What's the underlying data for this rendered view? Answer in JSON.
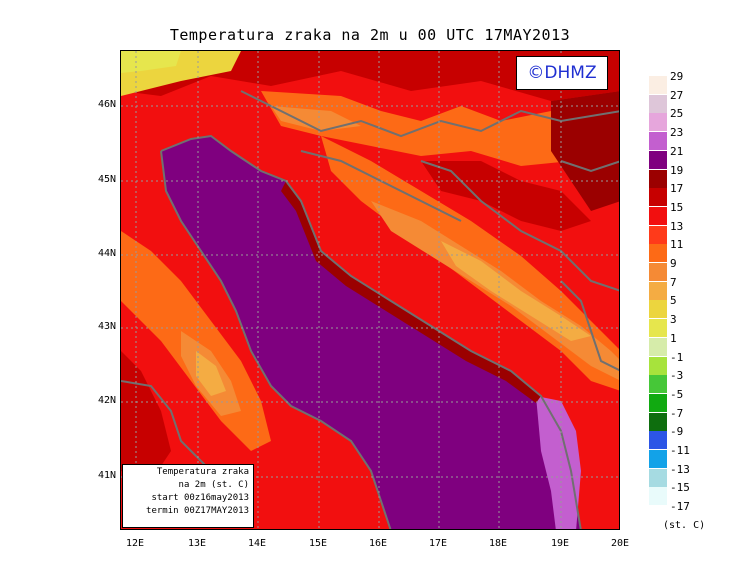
{
  "title": "Temperatura zraka na 2m u 00 UTC 17MAY2013",
  "badge": "©DHMZ",
  "info_box": {
    "line1": "Temperatura zraka",
    "line2": "na 2m (st. C)",
    "line3": "start 00z16may2013",
    "line4": "termin 00Z17MAY2013"
  },
  "lat_ticks": [
    "46N",
    "45N",
    "44N",
    "43N",
    "42N",
    "41N"
  ],
  "lon_ticks": [
    "12E",
    "13E",
    "14E",
    "15E",
    "16E",
    "17E",
    "18E",
    "19E",
    "20E"
  ],
  "legend": {
    "labels": [
      "29",
      "27",
      "25",
      "23",
      "21",
      "19",
      "17",
      "15",
      "13",
      "11",
      "9",
      "7",
      "5",
      "3",
      "1",
      "-1",
      "-3",
      "-5",
      "-7",
      "-9",
      "-11",
      "-13",
      "-15",
      "-17"
    ],
    "colors": [
      "#fbeee3",
      "#dec6d9",
      "#e6a6dc",
      "#c35fcf",
      "#7f007f",
      "#9b0000",
      "#c70000",
      "#f20f0f",
      "#ff3a1a",
      "#fd6a16",
      "#f58a35",
      "#f4ac43",
      "#ecd53e",
      "#e6e64d",
      "#d6ecaa",
      "#a7e33c",
      "#46c738",
      "#11aa11",
      "#0e6e0e",
      "#2c55e6",
      "#12a2e8",
      "#a6dbe2",
      "#e9fbfb"
    ],
    "unit": "(st. C)"
  },
  "colors": {
    "sea": "#7f007f",
    "coast_ridge": "#f4ac43",
    "coastline": "#707070",
    "badge_text": "#1f2fd1"
  }
}
